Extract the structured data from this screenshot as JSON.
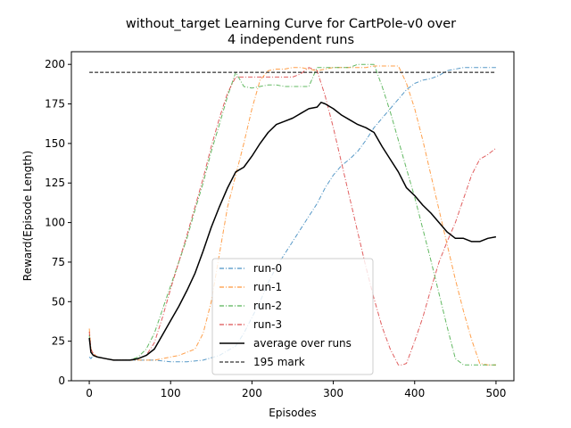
{
  "chart_data": {
    "type": "line",
    "title_lines": [
      "without_target Learning Curve for CartPole-v0 over",
      "4 independent runs"
    ],
    "xlabel": "Episodes",
    "ylabel": "Reward(Episode Length)",
    "xlim": [
      -22,
      522
    ],
    "ylim": [
      0,
      208
    ],
    "xticks": [
      0,
      100,
      200,
      300,
      400,
      500
    ],
    "yticks": [
      0,
      25,
      50,
      75,
      100,
      125,
      150,
      175,
      200
    ],
    "grid": false,
    "legend_position": "lower-center",
    "series": [
      {
        "name": "run-0",
        "color": "#1f77b4",
        "style": "dashdot",
        "x": [
          0,
          2,
          5,
          10,
          20,
          30,
          40,
          50,
          60,
          70,
          80,
          100,
          120,
          140,
          160,
          180,
          190,
          200,
          210,
          220,
          230,
          240,
          250,
          260,
          270,
          280,
          290,
          300,
          310,
          320,
          330,
          340,
          350,
          360,
          370,
          380,
          390,
          400,
          410,
          420,
          430,
          440,
          450,
          460,
          480,
          500
        ],
        "y": [
          15,
          14,
          16,
          15,
          14,
          13,
          13,
          13,
          13,
          13,
          13,
          12,
          12,
          13,
          16,
          22,
          30,
          40,
          50,
          62,
          72,
          80,
          88,
          96,
          104,
          112,
          122,
          130,
          136,
          140,
          145,
          152,
          160,
          166,
          172,
          178,
          184,
          188,
          190,
          191,
          193,
          196,
          197,
          198,
          198,
          198
        ]
      },
      {
        "name": "run-1",
        "color": "#ff7f0e",
        "style": "dashdot",
        "x": [
          0,
          2,
          5,
          10,
          20,
          30,
          40,
          50,
          60,
          70,
          80,
          90,
          100,
          110,
          120,
          130,
          140,
          150,
          160,
          170,
          180,
          190,
          200,
          210,
          220,
          230,
          240,
          250,
          260,
          270,
          280,
          290,
          300,
          310,
          320,
          330,
          340,
          350,
          360,
          370,
          380,
          390,
          400,
          410,
          420,
          430,
          440,
          450,
          460,
          470,
          480,
          490,
          500
        ],
        "y": [
          33,
          20,
          17,
          15,
          14,
          13,
          13,
          13,
          13,
          13,
          13,
          14,
          15,
          16,
          18,
          20,
          30,
          50,
          80,
          110,
          130,
          150,
          172,
          190,
          196,
          197,
          197,
          198,
          198,
          197,
          196,
          197,
          198,
          198,
          198,
          198,
          198,
          199,
          199,
          199,
          199,
          188,
          172,
          152,
          130,
          108,
          86,
          64,
          44,
          26,
          11,
          10,
          10
        ]
      },
      {
        "name": "run-2",
        "color": "#2ca02c",
        "style": "dashdot",
        "x": [
          0,
          2,
          5,
          10,
          20,
          30,
          40,
          50,
          60,
          70,
          80,
          90,
          100,
          110,
          120,
          130,
          140,
          150,
          160,
          170,
          180,
          190,
          200,
          210,
          220,
          230,
          240,
          250,
          260,
          270,
          280,
          290,
          300,
          310,
          320,
          330,
          340,
          350,
          360,
          370,
          380,
          390,
          400,
          410,
          420,
          430,
          440,
          450,
          460,
          480,
          500
        ],
        "y": [
          29,
          18,
          16,
          15,
          14,
          13,
          13,
          13,
          15,
          20,
          30,
          45,
          60,
          75,
          90,
          108,
          125,
          145,
          162,
          180,
          195,
          186,
          185,
          186,
          187,
          187,
          186,
          186,
          186,
          186,
          198,
          198,
          198,
          198,
          198,
          200,
          200,
          200,
          186,
          170,
          152,
          134,
          116,
          96,
          76,
          55,
          34,
          14,
          10,
          10,
          10
        ]
      },
      {
        "name": "run-3",
        "color": "#d62728",
        "style": "dashdot",
        "x": [
          0,
          2,
          5,
          10,
          20,
          30,
          40,
          50,
          60,
          70,
          80,
          90,
          100,
          110,
          120,
          130,
          140,
          150,
          160,
          170,
          180,
          190,
          200,
          210,
          220,
          230,
          240,
          250,
          260,
          270,
          280,
          290,
          300,
          310,
          320,
          330,
          340,
          350,
          360,
          370,
          380,
          385,
          390,
          400,
          410,
          420,
          430,
          440,
          450,
          460,
          470,
          480,
          490,
          500
        ],
        "y": [
          31,
          20,
          17,
          15,
          14,
          13,
          13,
          13,
          14,
          16,
          24,
          40,
          58,
          75,
          92,
          110,
          128,
          148,
          166,
          182,
          192,
          192,
          192,
          192,
          192,
          192,
          192,
          192,
          194,
          198,
          196,
          180,
          160,
          138,
          116,
          94,
          72,
          52,
          34,
          20,
          10,
          10,
          11,
          25,
          40,
          58,
          75,
          88,
          100,
          115,
          130,
          140,
          143,
          147
        ]
      },
      {
        "name": "average over runs",
        "color": "#000000",
        "style": "solid",
        "x": [
          0,
          2,
          5,
          10,
          20,
          30,
          40,
          50,
          60,
          70,
          80,
          90,
          100,
          110,
          120,
          130,
          140,
          150,
          160,
          170,
          180,
          190,
          200,
          210,
          220,
          230,
          240,
          250,
          260,
          270,
          280,
          285,
          290,
          300,
          310,
          320,
          330,
          340,
          350,
          360,
          370,
          380,
          390,
          400,
          410,
          420,
          430,
          440,
          450,
          460,
          470,
          480,
          490,
          500
        ],
        "y": [
          27,
          18,
          16,
          15,
          14,
          13,
          13,
          13,
          14,
          16,
          20,
          29,
          38,
          47,
          57,
          68,
          82,
          97,
          110,
          122,
          132,
          135,
          142,
          150,
          157,
          162,
          164,
          166,
          169,
          172,
          173,
          176,
          175,
          172,
          168,
          165,
          162,
          160,
          157,
          148,
          140,
          132,
          122,
          117,
          111,
          106,
          100,
          94,
          90,
          90,
          88,
          88,
          90,
          91
        ]
      },
      {
        "name": "195 mark",
        "color": "#000000",
        "style": "dashed",
        "x": [
          0,
          500
        ],
        "y": [
          195,
          195
        ]
      }
    ]
  }
}
